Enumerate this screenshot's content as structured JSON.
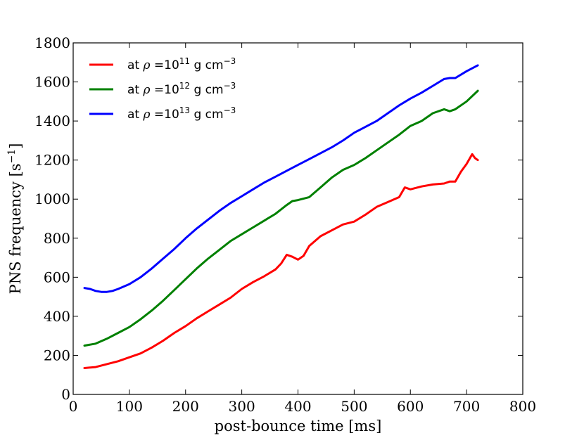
{
  "chart_data": {
    "type": "line",
    "title": "",
    "xlabel": "post-bounce time [ms]",
    "ylabel": "PNS frequency [s",
    "ylabel_sup": "−1",
    "ylabel_close": "]",
    "xlim": [
      0,
      800
    ],
    "ylim": [
      0,
      1800
    ],
    "xticks": [
      0,
      100,
      200,
      300,
      400,
      500,
      600,
      700,
      800
    ],
    "yticks": [
      0,
      200,
      400,
      600,
      800,
      1000,
      1200,
      1400,
      1600,
      1800
    ],
    "grid": false,
    "legend_position": "top-left",
    "series": [
      {
        "name": "red",
        "label_prefix": "at ",
        "label_rho": "ρ",
        "label_eq": " =10",
        "label_exp": "11",
        "label_unit": "  g cm",
        "label_unit_exp": "−3",
        "color": "#ff0000",
        "x": [
          20,
          40,
          60,
          80,
          100,
          120,
          140,
          160,
          180,
          200,
          220,
          240,
          260,
          280,
          300,
          320,
          340,
          360,
          370,
          380,
          390,
          400,
          410,
          420,
          440,
          460,
          480,
          500,
          520,
          540,
          560,
          580,
          590,
          600,
          620,
          640,
          660,
          670,
          680,
          690,
          700,
          710,
          715,
          720
        ],
        "y": [
          135,
          140,
          155,
          170,
          190,
          210,
          240,
          275,
          315,
          350,
          390,
          425,
          460,
          495,
          540,
          575,
          605,
          640,
          670,
          715,
          705,
          690,
          710,
          760,
          810,
          840,
          870,
          885,
          920,
          960,
          985,
          1010,
          1060,
          1050,
          1065,
          1075,
          1080,
          1090,
          1090,
          1140,
          1180,
          1230,
          1210,
          1200
        ]
      },
      {
        "name": "green",
        "label_prefix": "at ",
        "label_rho": "ρ",
        "label_eq": " =10",
        "label_exp": "12",
        "label_unit": "  g cm",
        "label_unit_exp": "−3",
        "color": "#008000",
        "x": [
          20,
          40,
          60,
          80,
          100,
          120,
          140,
          160,
          180,
          200,
          220,
          240,
          260,
          280,
          300,
          320,
          340,
          360,
          380,
          390,
          400,
          420,
          440,
          460,
          480,
          500,
          520,
          540,
          560,
          580,
          600,
          620,
          640,
          660,
          670,
          680,
          700,
          720
        ],
        "y": [
          250,
          260,
          285,
          315,
          345,
          385,
          430,
          480,
          535,
          590,
          645,
          695,
          740,
          785,
          820,
          855,
          890,
          925,
          970,
          990,
          995,
          1010,
          1060,
          1110,
          1150,
          1175,
          1210,
          1250,
          1290,
          1330,
          1375,
          1400,
          1440,
          1460,
          1450,
          1460,
          1500,
          1555
        ]
      },
      {
        "name": "blue",
        "label_prefix": "at ",
        "label_rho": "ρ",
        "label_eq": " =10",
        "label_exp": "13",
        "label_unit": "  g cm",
        "label_unit_exp": "−3",
        "color": "#0000ff",
        "x": [
          20,
          30,
          40,
          50,
          60,
          70,
          80,
          100,
          120,
          140,
          160,
          180,
          200,
          220,
          240,
          260,
          280,
          300,
          320,
          340,
          360,
          380,
          400,
          420,
          440,
          460,
          480,
          500,
          520,
          540,
          560,
          580,
          600,
          620,
          640,
          660,
          670,
          680,
          700,
          720
        ],
        "y": [
          545,
          540,
          530,
          525,
          525,
          530,
          540,
          565,
          600,
          645,
          695,
          745,
          800,
          850,
          895,
          940,
          980,
          1015,
          1050,
          1085,
          1115,
          1145,
          1175,
          1205,
          1235,
          1265,
          1300,
          1340,
          1370,
          1400,
          1440,
          1480,
          1515,
          1545,
          1580,
          1615,
          1620,
          1620,
          1655,
          1685
        ]
      }
    ]
  }
}
